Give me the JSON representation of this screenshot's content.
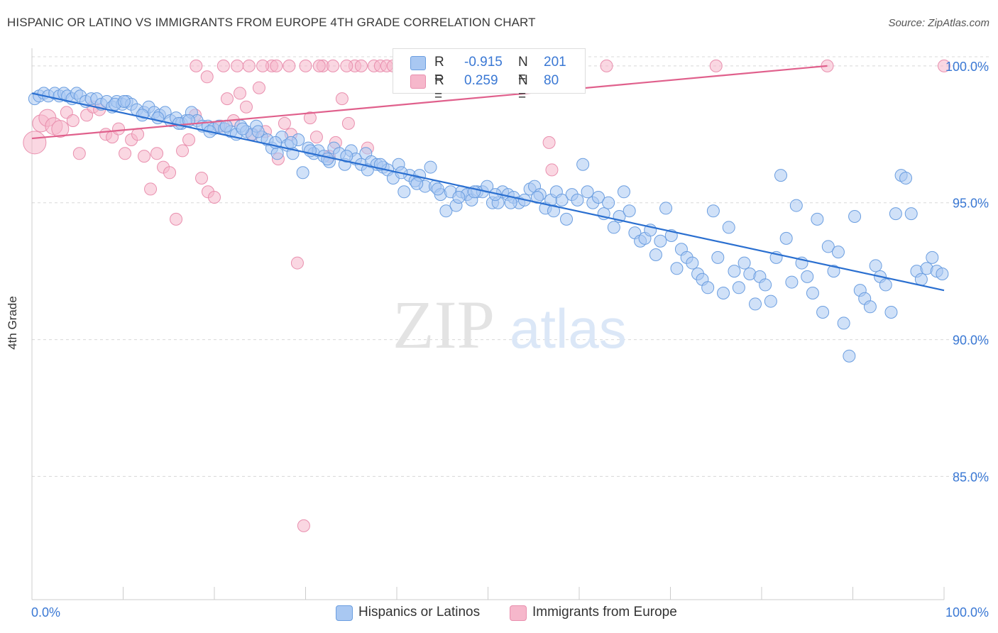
{
  "title": "HISPANIC OR LATINO VS IMMIGRANTS FROM EUROPE 4TH GRADE CORRELATION CHART",
  "source": "Source: ZipAtlas.com",
  "watermark": {
    "zip": "ZIP",
    "atlas": "atlas"
  },
  "legend": {
    "rows": [
      {
        "r_label": "R =",
        "r_value": "-0.915",
        "n_label": "N =",
        "n_value": "201"
      },
      {
        "r_label": "R =",
        "r_value": "0.259",
        "n_label": "N =",
        "n_value": "80"
      }
    ]
  },
  "colors": {
    "blue_fill": "#a9c8f2",
    "blue_stroke": "#6b9ee0",
    "blue_line": "#2a6fd0",
    "pink_fill": "#f6b7cb",
    "pink_stroke": "#e98fae",
    "pink_line": "#e0608c",
    "tick_label": "#3a78d4",
    "grid": "#d8d8d8"
  },
  "chart_data": {
    "type": "scatter",
    "xlabel": "",
    "ylabel": "4th Grade",
    "xlim": [
      0,
      100
    ],
    "ylim": [
      80.5,
      100.8
    ],
    "x_tick_labels": [
      "0.0%",
      "100.0%"
    ],
    "y_ticks": [
      85,
      90,
      95,
      100
    ],
    "y_tick_labels": [
      "85.0%",
      "90.0%",
      "95.0%",
      "100.0%"
    ],
    "grid": "horizontal dashed",
    "legend_position": "bottom-center",
    "series": [
      {
        "name": "Hispanics or Latinos",
        "r": -0.915,
        "n": 201,
        "trend": {
          "x": [
            0,
            100
          ],
          "y": [
            99.0,
            91.8
          ]
        },
        "points": [
          [
            0.3,
            98.8
          ],
          [
            0.8,
            98.9
          ],
          [
            1.3,
            99.0
          ],
          [
            1.8,
            98.9
          ],
          [
            2.5,
            99.0
          ],
          [
            3.0,
            98.9
          ],
          [
            3.5,
            99.0
          ],
          [
            3.9,
            98.9
          ],
          [
            4.4,
            98.8
          ],
          [
            4.9,
            99.0
          ],
          [
            5.3,
            98.9
          ],
          [
            5.9,
            98.7
          ],
          [
            6.5,
            98.8
          ],
          [
            7.1,
            98.8
          ],
          [
            7.6,
            98.6
          ],
          [
            8.2,
            98.7
          ],
          [
            8.8,
            98.5
          ],
          [
            9.3,
            98.7
          ],
          [
            9.9,
            98.6
          ],
          [
            10.4,
            98.7
          ],
          [
            10.9,
            98.6
          ],
          [
            11.5,
            98.4
          ],
          [
            12.3,
            98.3
          ],
          [
            12.8,
            98.5
          ],
          [
            13.4,
            98.3
          ],
          [
            14.0,
            98.2
          ],
          [
            14.6,
            98.3
          ],
          [
            15.2,
            98.0
          ],
          [
            15.8,
            98.1
          ],
          [
            16.4,
            97.9
          ],
          [
            16.9,
            98.0
          ],
          [
            17.5,
            98.3
          ],
          [
            18.1,
            98.0
          ],
          [
            18.7,
            97.8
          ],
          [
            19.3,
            97.8
          ],
          [
            19.9,
            97.7
          ],
          [
            20.5,
            97.8
          ],
          [
            21.1,
            97.7
          ],
          [
            21.8,
            97.6
          ],
          [
            22.4,
            97.5
          ],
          [
            22.9,
            97.8
          ],
          [
            23.5,
            97.6
          ],
          [
            24.1,
            97.5
          ],
          [
            24.6,
            97.8
          ],
          [
            25.2,
            97.4
          ],
          [
            25.8,
            97.3
          ],
          [
            26.3,
            97.0
          ],
          [
            26.9,
            96.8
          ],
          [
            27.4,
            97.4
          ],
          [
            28.0,
            97.1
          ],
          [
            28.6,
            96.8
          ],
          [
            29.2,
            97.3
          ],
          [
            29.7,
            96.1
          ],
          [
            30.3,
            97.0
          ],
          [
            30.9,
            96.8
          ],
          [
            31.4,
            96.9
          ],
          [
            32.0,
            96.7
          ],
          [
            32.6,
            96.5
          ],
          [
            33.1,
            97.0
          ],
          [
            33.7,
            96.8
          ],
          [
            34.3,
            96.4
          ],
          [
            35.0,
            96.9
          ],
          [
            35.5,
            96.6
          ],
          [
            36.1,
            96.4
          ],
          [
            36.6,
            96.8
          ],
          [
            37.2,
            96.5
          ],
          [
            37.8,
            96.4
          ],
          [
            38.5,
            96.3
          ],
          [
            39.0,
            96.2
          ],
          [
            39.6,
            95.9
          ],
          [
            40.2,
            96.4
          ],
          [
            40.8,
            95.4
          ],
          [
            41.4,
            96.0
          ],
          [
            42.0,
            95.8
          ],
          [
            42.5,
            96.0
          ],
          [
            43.1,
            95.6
          ],
          [
            43.7,
            96.3
          ],
          [
            44.2,
            95.6
          ],
          [
            44.8,
            95.3
          ],
          [
            45.4,
            94.7
          ],
          [
            45.9,
            95.4
          ],
          [
            46.5,
            94.9
          ],
          [
            47.1,
            95.4
          ],
          [
            47.7,
            95.3
          ],
          [
            48.2,
            95.1
          ],
          [
            48.8,
            95.4
          ],
          [
            49.4,
            95.4
          ],
          [
            49.9,
            95.6
          ],
          [
            50.5,
            95.0
          ],
          [
            51.1,
            95.0
          ],
          [
            51.6,
            95.4
          ],
          [
            52.2,
            95.3
          ],
          [
            52.8,
            95.2
          ],
          [
            53.4,
            95.0
          ],
          [
            54.0,
            95.1
          ],
          [
            54.6,
            95.5
          ],
          [
            55.1,
            95.6
          ],
          [
            55.7,
            95.3
          ],
          [
            56.3,
            94.8
          ],
          [
            56.9,
            95.1
          ],
          [
            57.5,
            95.4
          ],
          [
            58.1,
            95.1
          ],
          [
            58.6,
            94.4
          ],
          [
            59.2,
            95.3
          ],
          [
            59.8,
            95.1
          ],
          [
            60.4,
            96.4
          ],
          [
            60.9,
            95.4
          ],
          [
            61.5,
            95.0
          ],
          [
            62.1,
            95.2
          ],
          [
            62.7,
            94.6
          ],
          [
            63.2,
            95.0
          ],
          [
            63.8,
            94.1
          ],
          [
            64.4,
            94.5
          ],
          [
            64.9,
            95.4
          ],
          [
            65.5,
            94.7
          ],
          [
            66.1,
            93.9
          ],
          [
            66.7,
            93.6
          ],
          [
            67.2,
            93.7
          ],
          [
            67.8,
            94.0
          ],
          [
            68.4,
            93.1
          ],
          [
            68.9,
            93.6
          ],
          [
            69.5,
            94.8
          ],
          [
            70.1,
            93.8
          ],
          [
            70.7,
            92.6
          ],
          [
            71.2,
            93.3
          ],
          [
            71.8,
            93.0
          ],
          [
            72.4,
            92.8
          ],
          [
            73.0,
            92.4
          ],
          [
            73.5,
            92.2
          ],
          [
            74.1,
            91.9
          ],
          [
            74.7,
            94.7
          ],
          [
            75.2,
            93.0
          ],
          [
            75.8,
            91.7
          ],
          [
            76.4,
            94.1
          ],
          [
            77.0,
            92.5
          ],
          [
            77.5,
            91.9
          ],
          [
            78.1,
            92.8
          ],
          [
            78.7,
            92.4
          ],
          [
            79.3,
            91.3
          ],
          [
            79.8,
            92.3
          ],
          [
            80.4,
            92.0
          ],
          [
            81.0,
            91.4
          ],
          [
            81.6,
            93.0
          ],
          [
            82.1,
            96.0
          ],
          [
            82.7,
            93.7
          ],
          [
            83.3,
            92.1
          ],
          [
            83.8,
            94.9
          ],
          [
            84.4,
            92.8
          ],
          [
            85.0,
            92.3
          ],
          [
            85.6,
            91.7
          ],
          [
            86.1,
            94.4
          ],
          [
            86.7,
            91.0
          ],
          [
            87.3,
            93.4
          ],
          [
            87.9,
            92.5
          ],
          [
            88.4,
            93.2
          ],
          [
            89.0,
            90.6
          ],
          [
            89.6,
            89.4
          ],
          [
            90.2,
            94.5
          ],
          [
            90.8,
            91.8
          ],
          [
            91.3,
            91.5
          ],
          [
            91.9,
            91.2
          ],
          [
            92.5,
            92.7
          ],
          [
            93.0,
            92.3
          ],
          [
            93.6,
            92.0
          ],
          [
            94.2,
            91.0
          ],
          [
            94.7,
            94.6
          ],
          [
            95.3,
            96.0
          ],
          [
            95.8,
            95.9
          ],
          [
            96.4,
            94.6
          ],
          [
            97.0,
            92.5
          ],
          [
            97.5,
            92.2
          ],
          [
            98.1,
            92.6
          ],
          [
            98.7,
            93.0
          ],
          [
            99.2,
            92.5
          ],
          [
            99.8,
            92.4
          ],
          [
            9.1,
            98.6
          ],
          [
            10.1,
            98.7
          ],
          [
            12.1,
            98.2
          ],
          [
            13.8,
            98.1
          ],
          [
            16.1,
            97.9
          ],
          [
            17.2,
            98.0
          ],
          [
            19.5,
            97.6
          ],
          [
            21.3,
            97.8
          ],
          [
            23.1,
            97.7
          ],
          [
            24.8,
            97.6
          ],
          [
            26.7,
            97.2
          ],
          [
            28.4,
            97.2
          ],
          [
            30.5,
            96.9
          ],
          [
            32.4,
            96.6
          ],
          [
            34.5,
            96.7
          ],
          [
            36.8,
            96.2
          ],
          [
            38.2,
            96.4
          ],
          [
            40.5,
            96.1
          ],
          [
            42.2,
            95.7
          ],
          [
            44.5,
            95.5
          ],
          [
            46.8,
            95.2
          ],
          [
            48.5,
            95.4
          ],
          [
            50.8,
            95.3
          ],
          [
            52.5,
            95.0
          ],
          [
            55.4,
            95.2
          ],
          [
            57.2,
            94.7
          ]
        ]
      },
      {
        "name": "Immigrants from Europe",
        "r": 0.259,
        "n": 80,
        "trend": {
          "x": [
            0,
            87.2
          ],
          "y": [
            97.35,
            100.0
          ]
        },
        "points": [
          [
            0.3,
            97.2
          ],
          [
            1.0,
            97.9
          ],
          [
            1.7,
            98.1
          ],
          [
            2.4,
            97.8
          ],
          [
            3.1,
            97.7
          ],
          [
            3.8,
            98.3
          ],
          [
            4.5,
            98.0
          ],
          [
            5.2,
            96.8
          ],
          [
            6.0,
            98.2
          ],
          [
            6.7,
            98.5
          ],
          [
            7.4,
            98.4
          ],
          [
            8.1,
            97.5
          ],
          [
            8.8,
            97.4
          ],
          [
            9.5,
            97.7
          ],
          [
            10.2,
            96.8
          ],
          [
            10.9,
            97.3
          ],
          [
            11.6,
            97.5
          ],
          [
            12.3,
            96.7
          ],
          [
            13.0,
            95.5
          ],
          [
            13.7,
            96.8
          ],
          [
            14.4,
            96.3
          ],
          [
            15.1,
            96.1
          ],
          [
            15.8,
            94.4
          ],
          [
            16.5,
            96.9
          ],
          [
            17.2,
            97.3
          ],
          [
            17.9,
            98.2
          ],
          [
            18.6,
            95.9
          ],
          [
            19.3,
            95.4
          ],
          [
            20.0,
            95.2
          ],
          [
            20.7,
            97.8
          ],
          [
            21.4,
            98.8
          ],
          [
            22.1,
            98.0
          ],
          [
            22.8,
            99.0
          ],
          [
            23.5,
            98.5
          ],
          [
            24.2,
            97.5
          ],
          [
            24.9,
            99.2
          ],
          [
            25.6,
            97.6
          ],
          [
            26.3,
            100.0
          ],
          [
            27.0,
            96.6
          ],
          [
            27.7,
            97.9
          ],
          [
            28.4,
            97.5
          ],
          [
            29.1,
            92.8
          ],
          [
            29.8,
            83.2
          ],
          [
            30.5,
            98.1
          ],
          [
            31.2,
            97.4
          ],
          [
            31.9,
            100.0
          ],
          [
            32.6,
            96.7
          ],
          [
            33.3,
            97.2
          ],
          [
            34.0,
            98.8
          ],
          [
            34.7,
            97.9
          ],
          [
            35.4,
            100.0
          ],
          [
            36.1,
            100.0
          ],
          [
            36.8,
            97.0
          ],
          [
            37.5,
            100.0
          ],
          [
            38.2,
            100.0
          ],
          [
            38.9,
            100.0
          ],
          [
            39.6,
            100.0
          ],
          [
            40.3,
            100.0
          ],
          [
            41.0,
            100.0
          ],
          [
            41.7,
            100.0
          ],
          [
            42.4,
            100.0
          ],
          [
            18.0,
            100.0
          ],
          [
            19.2,
            99.6
          ],
          [
            21.0,
            100.0
          ],
          [
            22.5,
            100.0
          ],
          [
            23.8,
            100.0
          ],
          [
            25.3,
            100.0
          ],
          [
            26.8,
            100.0
          ],
          [
            28.2,
            100.0
          ],
          [
            30.0,
            100.0
          ],
          [
            31.5,
            100.0
          ],
          [
            33.0,
            100.0
          ],
          [
            34.5,
            100.0
          ],
          [
            47.5,
            100.0
          ],
          [
            56.7,
            97.2
          ],
          [
            57.0,
            96.2
          ],
          [
            63.0,
            100.0
          ],
          [
            75.0,
            100.0
          ],
          [
            87.2,
            100.0
          ],
          [
            100.0,
            100.0
          ]
        ]
      }
    ]
  }
}
